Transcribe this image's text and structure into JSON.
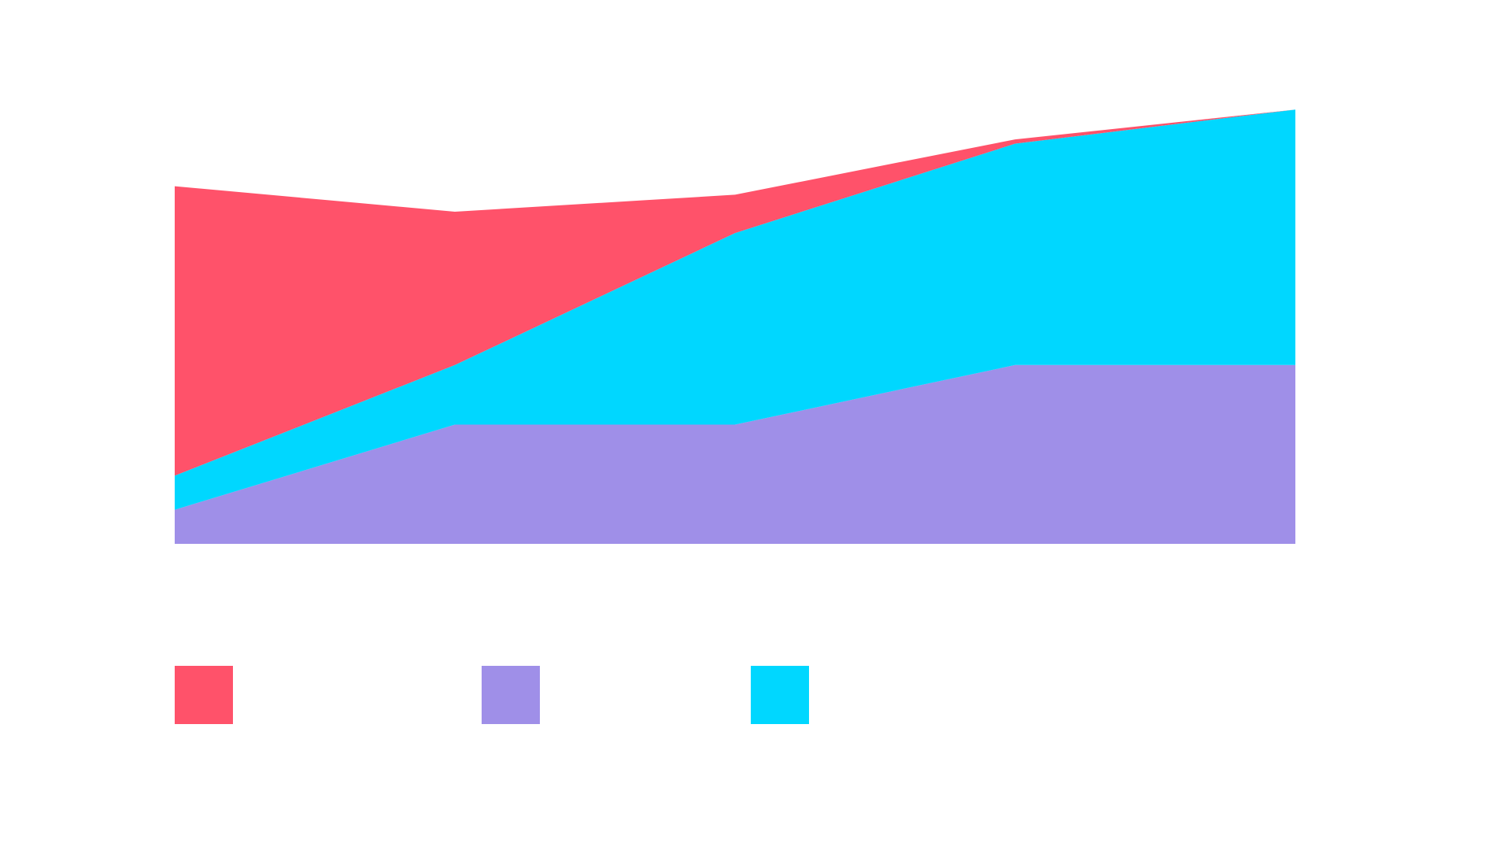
{
  "chart_data": {
    "type": "area",
    "stacked": true,
    "x": [
      0,
      1,
      2,
      3,
      4
    ],
    "ylim": [
      0,
      100
    ],
    "grid": false,
    "legend": "bottom-left",
    "colors": {
      "series_a": "#FF526A",
      "series_b": "#9F8FE8",
      "series_c": "#00D7FF"
    },
    "series": [
      {
        "key": "series_b",
        "name": "",
        "color": "#9F8FE8",
        "values": [
          8,
          28,
          28,
          42,
          42
        ]
      },
      {
        "key": "series_c",
        "name": "",
        "color": "#00D7FF",
        "values": [
          8,
          14,
          45,
          52,
          60
        ]
      },
      {
        "key": "series_a",
        "name": "",
        "color": "#FF526A",
        "values": [
          68,
          36,
          9,
          1,
          0
        ]
      }
    ],
    "legend_order": [
      "series_a",
      "series_b",
      "series_c"
    ]
  }
}
